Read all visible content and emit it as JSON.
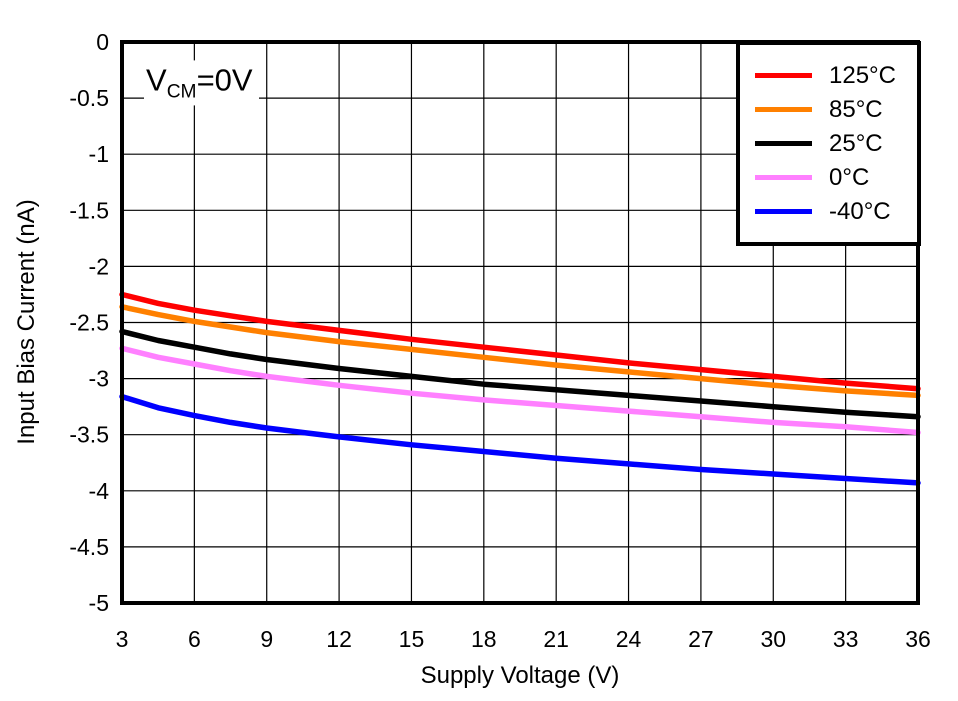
{
  "chart_data": {
    "type": "line",
    "title": "",
    "xlabel": "Supply Voltage (V)",
    "ylabel": "Input Bias Current (nA)",
    "annotation": {
      "base": "V",
      "sub": "CM",
      "rest": "=0V"
    },
    "xlim": [
      3,
      36
    ],
    "ylim": [
      -5,
      0
    ],
    "grid": true,
    "legend_position": "top-right",
    "xticks": [
      3,
      6,
      9,
      12,
      15,
      18,
      21,
      24,
      27,
      30,
      33,
      36
    ],
    "xtick_labels": [
      "3",
      "6",
      "9",
      "12",
      "15",
      "18",
      "21",
      "24",
      "27",
      "30",
      "33",
      "36"
    ],
    "yticks": [
      0,
      -0.5,
      -1,
      -1.5,
      -2,
      -2.5,
      -3,
      -3.5,
      -4,
      -4.5,
      -5
    ],
    "ytick_labels": [
      "0",
      "-0.5",
      "-1",
      "-1.5",
      "-2",
      "-2.5",
      "-3",
      "-3.5",
      "-4",
      "-4.5",
      "-5"
    ],
    "x": [
      3,
      4.5,
      6,
      7.5,
      9,
      10.5,
      12,
      15,
      18,
      21,
      24,
      27,
      30,
      33,
      36
    ],
    "series": [
      {
        "name": "125°C",
        "color": "#FF0000",
        "values": [
          -2.25,
          -2.33,
          -2.39,
          -2.44,
          -2.49,
          -2.53,
          -2.57,
          -2.65,
          -2.72,
          -2.79,
          -2.86,
          -2.92,
          -2.98,
          -3.04,
          -3.09
        ]
      },
      {
        "name": "85°C",
        "color": "#FF8000",
        "values": [
          -2.36,
          -2.43,
          -2.49,
          -2.54,
          -2.59,
          -2.63,
          -2.67,
          -2.74,
          -2.81,
          -2.88,
          -2.94,
          -3.0,
          -3.06,
          -3.11,
          -3.15
        ]
      },
      {
        "name": "25°C",
        "color": "#000000",
        "values": [
          -2.58,
          -2.66,
          -2.72,
          -2.78,
          -2.83,
          -2.87,
          -2.91,
          -2.98,
          -3.05,
          -3.1,
          -3.15,
          -3.2,
          -3.25,
          -3.3,
          -3.34
        ]
      },
      {
        "name": "0°C",
        "color": "#FF80FF",
        "values": [
          -2.73,
          -2.81,
          -2.87,
          -2.93,
          -2.98,
          -3.02,
          -3.06,
          -3.13,
          -3.19,
          -3.24,
          -3.29,
          -3.34,
          -3.39,
          -3.43,
          -3.48
        ]
      },
      {
        "name": "-40°C",
        "color": "#0000FF",
        "values": [
          -3.16,
          -3.26,
          -3.33,
          -3.39,
          -3.44,
          -3.48,
          -3.52,
          -3.59,
          -3.65,
          -3.71,
          -3.76,
          -3.81,
          -3.85,
          -3.89,
          -3.93
        ]
      }
    ]
  }
}
